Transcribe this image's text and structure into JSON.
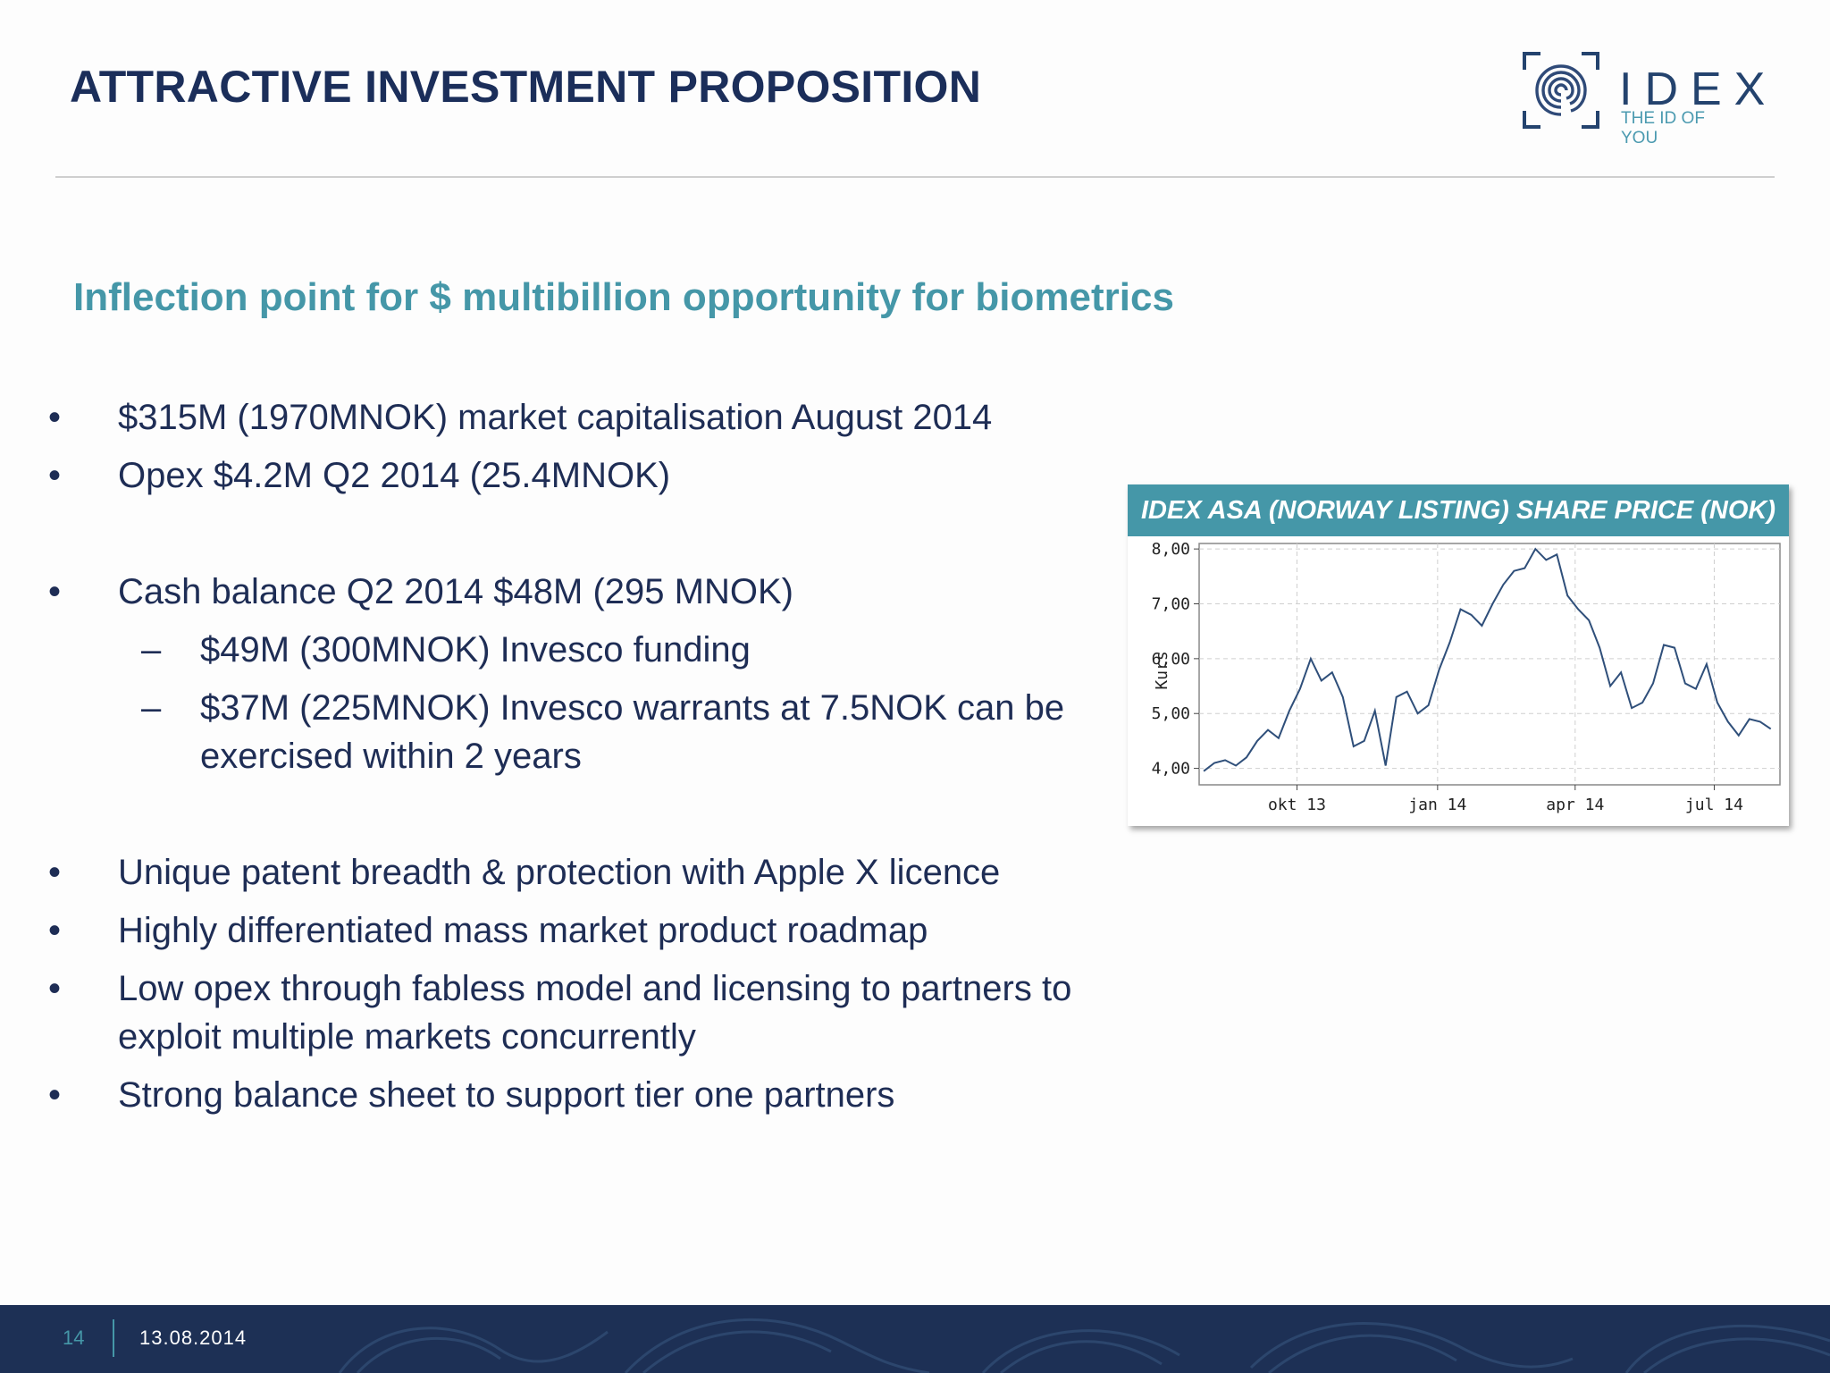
{
  "header": {
    "title": "ATTRACTIVE INVESTMENT PROPOSITION",
    "logo_name": "IDEX",
    "logo_tagline": "THE ID OF YOU"
  },
  "subtitle": "Inflection point for $ multibillion opportunity for biometrics",
  "bullets": {
    "b1": "$315M (1970MNOK) market capitalisation August 2014",
    "b2": "Opex $4.2M Q2 2014 (25.4MNOK)",
    "b3": "Cash balance Q2 2014 $48M (295 MNOK)",
    "b3_sub1": "$49M (300MNOK) Invesco funding",
    "b3_sub2": "$37M (225MNOK) Invesco warrants at 7.5NOK can be exercised within 2 years",
    "b4": "Unique patent breadth & protection with Apple X licence",
    "b5": "Highly differentiated mass market product roadmap",
    "b6": "Low opex through fabless model and licensing to partners to exploit multiple markets concurrently",
    "b7": "Strong balance sheet to support tier one partners",
    "bullet_mark": "•",
    "sub_mark": "–"
  },
  "chart_data": {
    "type": "line",
    "title": "IDEX ASA (NORWAY LISTING) SHARE PRICE (NOK)",
    "ylabel": "Kurs",
    "ylim": [
      3.7,
      8.1
    ],
    "yticks": [
      "8,00",
      "7,00",
      "6,00",
      "5,00",
      "4,00"
    ],
    "ytick_values": [
      8,
      7,
      6,
      5,
      4
    ],
    "xticks": [
      "okt 13",
      "jan 14",
      "apr 14",
      "jul 14"
    ],
    "xtick_values": [
      "2013-10-01",
      "2014-01-01",
      "2014-04-01",
      "2014-07-01"
    ],
    "xlim": [
      "2013-07-29",
      "2014-08-13"
    ],
    "grid": true,
    "line_color": "#2f4f7a",
    "series": [
      {
        "x": [
          "2013-08-01",
          "2013-08-08",
          "2013-08-15",
          "2013-08-22",
          "2013-08-29",
          "2013-09-05",
          "2013-09-12",
          "2013-09-19",
          "2013-09-26",
          "2013-10-03",
          "2013-10-10",
          "2013-10-17",
          "2013-10-24",
          "2013-10-31",
          "2013-11-07",
          "2013-11-14",
          "2013-11-21",
          "2013-11-28",
          "2013-12-05",
          "2013-12-12",
          "2013-12-19",
          "2013-12-26",
          "2014-01-02",
          "2014-01-09",
          "2014-01-16",
          "2014-01-23",
          "2014-01-30",
          "2014-02-06",
          "2014-02-13",
          "2014-02-20",
          "2014-02-27",
          "2014-03-06",
          "2014-03-13",
          "2014-03-20",
          "2014-03-27",
          "2014-04-03",
          "2014-04-10",
          "2014-04-17",
          "2014-04-24",
          "2014-05-01",
          "2014-05-08",
          "2014-05-15",
          "2014-05-22",
          "2014-05-29",
          "2014-06-05",
          "2014-06-12",
          "2014-06-19",
          "2014-06-26",
          "2014-07-03",
          "2014-07-10",
          "2014-07-17",
          "2014-07-24",
          "2014-07-31",
          "2014-08-07"
        ],
        "values": [
          3.95,
          4.1,
          4.15,
          4.05,
          4.2,
          4.5,
          4.7,
          4.55,
          5.05,
          5.45,
          6.0,
          5.6,
          5.75,
          5.3,
          4.4,
          4.5,
          5.05,
          4.05,
          5.3,
          5.4,
          5.0,
          5.15,
          5.8,
          6.3,
          6.9,
          6.8,
          6.6,
          7.0,
          7.35,
          7.6,
          7.65,
          8.0,
          7.8,
          7.9,
          7.15,
          6.9,
          6.7,
          6.2,
          5.5,
          5.75,
          5.1,
          5.2,
          5.55,
          6.25,
          6.2,
          5.55,
          5.45,
          5.9,
          5.2,
          4.85,
          4.6,
          4.9,
          4.85,
          4.72
        ]
      }
    ]
  },
  "footer": {
    "page_number": "14",
    "date": "13.08.2014"
  }
}
